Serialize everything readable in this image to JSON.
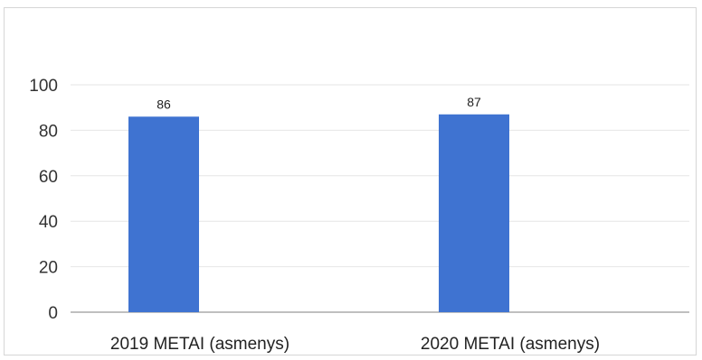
{
  "chart_data": {
    "type": "bar",
    "title": "",
    "xlabel": "",
    "ylabel": "",
    "categories": [
      "2019 METAI (asmenys)",
      "2020 METAI (asmenys)"
    ],
    "values": [
      86,
      87
    ],
    "data_labels": [
      "86",
      "87"
    ],
    "ylim": [
      0,
      100
    ],
    "yticks": [
      0,
      20,
      40,
      60,
      80,
      100
    ],
    "grid": true,
    "legend": "none",
    "bar_color": "#3f73d1",
    "grid_color": "#e6e6e6"
  }
}
